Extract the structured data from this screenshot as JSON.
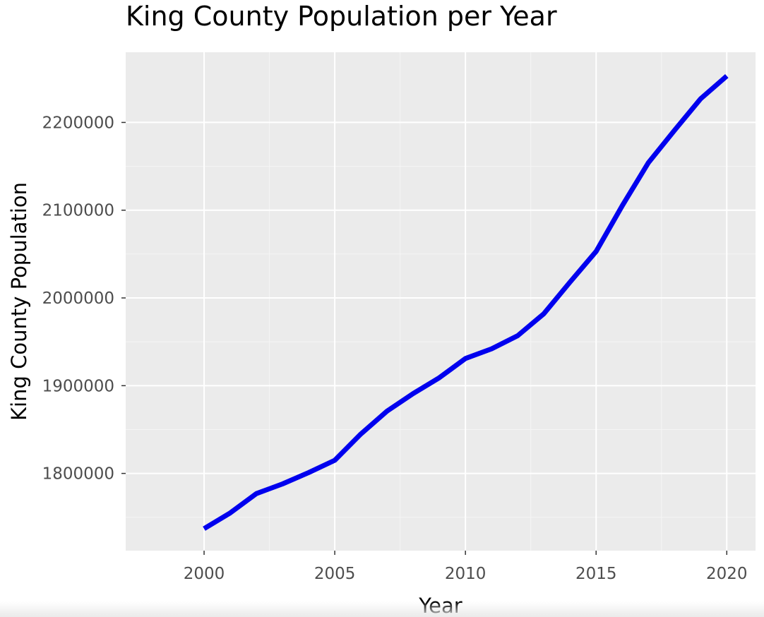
{
  "chart_data": {
    "type": "line",
    "title": "King County Population per Year",
    "xlabel": "Year",
    "ylabel": "King County Population",
    "x_ticks": [
      "2000",
      "2005",
      "2010",
      "2015",
      "2020"
    ],
    "y_ticks": [
      "1800000",
      "1900000",
      "2000000",
      "2100000",
      "2200000"
    ],
    "xlim": [
      1997,
      2021.1
    ],
    "ylim": [
      1712000,
      2280000
    ],
    "grid": true,
    "series": [
      {
        "color": "#0000ee",
        "x": [
          2000,
          2001,
          2002,
          2003,
          2004,
          2005,
          2006,
          2007,
          2008,
          2009,
          2010,
          2011,
          2012,
          2013,
          2014,
          2015,
          2016,
          2017,
          2018,
          2019,
          2020
        ],
        "y": [
          1737000,
          1755000,
          1777000,
          1788000,
          1801000,
          1815000,
          1845000,
          1871000,
          1891000,
          1909000,
          1931000,
          1942000,
          1957000,
          1982000,
          2018000,
          2053000,
          2105000,
          2154000,
          2191000,
          2227000,
          2253000
        ]
      }
    ]
  }
}
